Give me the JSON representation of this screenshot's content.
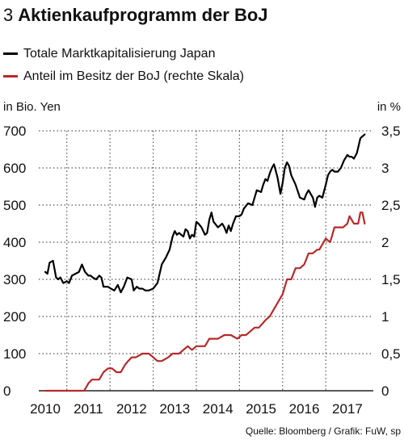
{
  "figure": {
    "number": "3",
    "title": "Aktienkaufprogramm der BoJ",
    "source": "Quelle: Bloomberg / Grafik: FuW, sp"
  },
  "colors": {
    "market_cap": "#000000",
    "boj_share": "#b52a2a",
    "grid": "#555555"
  },
  "chart_data": {
    "type": "line",
    "left_axis": {
      "label": "in Bio. Yen",
      "ylim": [
        0,
        700
      ],
      "ticks": [
        0,
        100,
        200,
        300,
        400,
        500,
        600,
        700
      ],
      "tick_labels": [
        "0",
        "100",
        "200",
        "300",
        "400",
        "500",
        "600",
        "700"
      ]
    },
    "right_axis": {
      "label": "in %",
      "ylim": [
        0,
        3.5
      ],
      "ticks": [
        0,
        0.5,
        1,
        1.5,
        2,
        2.5,
        3,
        3.5
      ],
      "tick_labels": [
        "0",
        "0,5",
        "1",
        "1,5",
        "2",
        "2,5",
        "3",
        "3,5"
      ]
    },
    "x_axis": {
      "xlim": [
        2009.85,
        2017.6
      ],
      "tick_labels": [
        "2010",
        "2011",
        "2012",
        "2013",
        "2014",
        "2015",
        "2016",
        "2017"
      ],
      "tick_positions": [
        2010,
        2011,
        2012,
        2013,
        2014,
        2015,
        2016,
        2017
      ]
    },
    "grid": "dotted",
    "series": [
      {
        "name": "Totale Marktkapitalisierung Japan",
        "axis": "left",
        "x": [
          2010.0,
          2010.05,
          2010.1,
          2010.18,
          2010.25,
          2010.3,
          2010.35,
          2010.42,
          2010.5,
          2010.55,
          2010.62,
          2010.7,
          2010.78,
          2010.85,
          2010.92,
          2011.0,
          2011.05,
          2011.1,
          2011.18,
          2011.25,
          2011.3,
          2011.35,
          2011.45,
          2011.52,
          2011.6,
          2011.68,
          2011.75,
          2011.82,
          2011.9,
          2012.0,
          2012.05,
          2012.12,
          2012.18,
          2012.25,
          2012.32,
          2012.4,
          2012.5,
          2012.6,
          2012.7,
          2012.8,
          2012.88,
          2012.95,
          2013.0,
          2013.05,
          2013.1,
          2013.15,
          2013.2,
          2013.25,
          2013.3,
          2013.35,
          2013.4,
          2013.45,
          2013.5,
          2013.55,
          2013.62,
          2013.7,
          2013.75,
          2013.8,
          2013.85,
          2013.9,
          2014.0,
          2014.05,
          2014.1,
          2014.15,
          2014.2,
          2014.25,
          2014.3,
          2014.35,
          2014.42,
          2014.5,
          2014.55,
          2014.6,
          2014.7,
          2014.8,
          2014.9,
          2015.0,
          2015.05,
          2015.1,
          2015.15,
          2015.2,
          2015.25,
          2015.3,
          2015.38,
          2015.45,
          2015.5,
          2015.55,
          2015.6,
          2015.65,
          2015.7,
          2015.8,
          2015.9,
          2016.0,
          2016.05,
          2016.1,
          2016.15,
          2016.2,
          2016.25,
          2016.3,
          2016.35,
          2016.42,
          2016.5,
          2016.55,
          2016.6,
          2016.65,
          2016.7,
          2016.78,
          2016.85,
          2016.92,
          2017.0,
          2017.05,
          2017.1,
          2017.15,
          2017.22,
          2017.3,
          2017.4
        ],
        "values": [
          320,
          315,
          345,
          350,
          305,
          300,
          305,
          290,
          295,
          290,
          310,
          315,
          320,
          340,
          320,
          310,
          310,
          305,
          300,
          310,
          305,
          280,
          280,
          275,
          270,
          285,
          265,
          280,
          305,
          300,
          270,
          280,
          275,
          275,
          270,
          270,
          275,
          290,
          340,
          360,
          380,
          415,
          430,
          420,
          425,
          420,
          415,
          435,
          430,
          410,
          420,
          415,
          455,
          450,
          440,
          420,
          425,
          460,
          480,
          455,
          440,
          445,
          450,
          440,
          425,
          445,
          430,
          450,
          470,
          470,
          475,
          490,
          505,
          500,
          540,
          535,
          555,
          570,
          565,
          585,
          600,
          610,
          575,
          530,
          560,
          600,
          615,
          605,
          580,
          555,
          520,
          515,
          530,
          540,
          530,
          520,
          495,
          520,
          525,
          520,
          555,
          580,
          590,
          595,
          590,
          590,
          600,
          620,
          635,
          630,
          630,
          625,
          640,
          680,
          690
        ],
        "color": "#000000"
      },
      {
        "name": "Anteil im Besitz der BoJ (rechte Skala)",
        "axis": "right",
        "x": [
          2010.0,
          2010.5,
          2010.9,
          2010.95,
          2011.0,
          2011.08,
          2011.15,
          2011.25,
          2011.35,
          2011.45,
          2011.55,
          2011.65,
          2011.75,
          2011.85,
          2011.92,
          2012.0,
          2012.1,
          2012.25,
          2012.4,
          2012.5,
          2012.6,
          2012.7,
          2012.85,
          2012.95,
          2013.1,
          2013.2,
          2013.3,
          2013.4,
          2013.5,
          2013.6,
          2013.7,
          2013.8,
          2013.9,
          2014.0,
          2014.15,
          2014.3,
          2014.45,
          2014.55,
          2014.65,
          2014.75,
          2014.85,
          2014.95,
          2015.1,
          2015.2,
          2015.3,
          2015.4,
          2015.5,
          2015.55,
          2015.6,
          2015.65,
          2015.7,
          2015.8,
          2015.9,
          2016.0,
          2016.1,
          2016.2,
          2016.3,
          2016.35,
          2016.45,
          2016.5,
          2016.6,
          2016.65,
          2016.7,
          2016.8,
          2016.9,
          2017.0,
          2017.05,
          2017.15,
          2017.25,
          2017.3,
          2017.35,
          2017.4
        ],
        "values": [
          0.0,
          0.0,
          0.0,
          0.05,
          0.1,
          0.15,
          0.15,
          0.15,
          0.25,
          0.3,
          0.3,
          0.25,
          0.25,
          0.35,
          0.4,
          0.45,
          0.45,
          0.5,
          0.5,
          0.45,
          0.4,
          0.4,
          0.45,
          0.5,
          0.5,
          0.55,
          0.6,
          0.55,
          0.6,
          0.6,
          0.6,
          0.7,
          0.7,
          0.7,
          0.75,
          0.75,
          0.7,
          0.75,
          0.75,
          0.8,
          0.85,
          0.85,
          0.95,
          1.0,
          1.1,
          1.2,
          1.3,
          1.4,
          1.5,
          1.5,
          1.5,
          1.65,
          1.65,
          1.7,
          1.85,
          1.85,
          1.9,
          1.9,
          2.0,
          2.05,
          2.0,
          2.1,
          2.2,
          2.2,
          2.2,
          2.25,
          2.35,
          2.25,
          2.25,
          2.4,
          2.4,
          2.25
        ],
        "color": "#b52a2a"
      }
    ]
  }
}
